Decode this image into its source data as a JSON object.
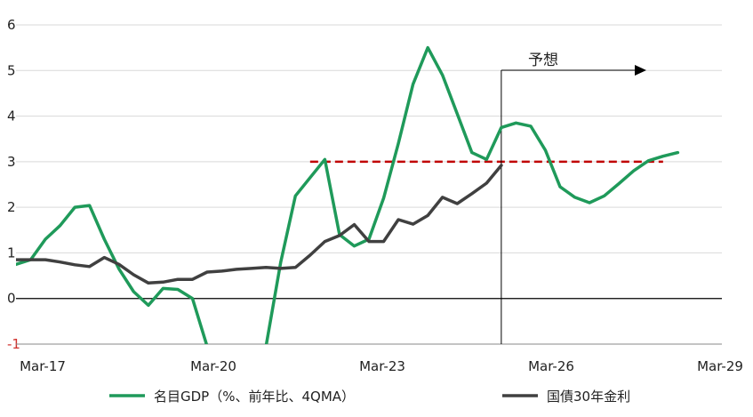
{
  "chart_data": {
    "type": "line",
    "title": "",
    "xlabel": "",
    "ylabel": "",
    "ylim": [
      -1,
      6
    ],
    "y_ticks": [
      "6",
      "5",
      "4",
      "3",
      "2",
      "1",
      "0",
      "-1"
    ],
    "x_ticks": [
      "Mar-17",
      "Mar-20",
      "Mar-23",
      "Mar-26",
      "Mar-29"
    ],
    "grid": "horizontal",
    "legend_position": "bottom",
    "series": [
      {
        "name": "名目GDP（%、前年比、4QMA）",
        "color": "#1f9a5a",
        "points": [
          [
            "2017-03",
            0.75
          ],
          [
            "2017-06",
            0.85
          ],
          [
            "2017-09",
            1.3
          ],
          [
            "2017-12",
            1.6
          ],
          [
            "2018-03",
            2.0
          ],
          [
            "2018-06",
            2.04
          ],
          [
            "2018-09",
            1.3
          ],
          [
            "2018-12",
            0.65
          ],
          [
            "2019-03",
            0.15
          ],
          [
            "2019-06",
            -0.15
          ],
          [
            "2019-09",
            0.22
          ],
          [
            "2019-12",
            0.2
          ],
          [
            "2020-03",
            0.0
          ],
          [
            "2020-06",
            -1.05
          ],
          [
            "2020-09",
            -1.4
          ],
          [
            "2020-12",
            -1.4
          ],
          [
            "2021-03",
            -1.4
          ],
          [
            "2021-06",
            -1.05
          ],
          [
            "2021-09",
            0.8
          ],
          [
            "2021-12",
            2.25
          ],
          [
            "2022-03",
            2.65
          ],
          [
            "2022-06",
            3.05
          ],
          [
            "2022-09",
            1.4
          ],
          [
            "2022-12",
            1.15
          ],
          [
            "2023-03",
            1.3
          ],
          [
            "2023-06",
            2.2
          ],
          [
            "2023-09",
            3.4
          ],
          [
            "2023-12",
            4.7
          ],
          [
            "2024-03",
            5.5
          ],
          [
            "2024-06",
            4.9
          ],
          [
            "2024-09",
            4.05
          ],
          [
            "2024-12",
            3.2
          ],
          [
            "2025-03",
            3.05
          ],
          [
            "2025-06",
            3.75
          ],
          [
            "2025-09",
            3.85
          ],
          [
            "2025-12",
            3.78
          ],
          [
            "2026-03",
            3.25
          ],
          [
            "2026-06",
            2.45
          ],
          [
            "2026-09",
            2.22
          ],
          [
            "2026-12",
            2.1
          ],
          [
            "2027-03",
            2.25
          ],
          [
            "2027-06",
            2.52
          ],
          [
            "2027-09",
            2.8
          ],
          [
            "2027-12",
            3.02
          ],
          [
            "2028-03",
            3.12
          ],
          [
            "2028-06",
            3.2
          ]
        ]
      },
      {
        "name": "国債30年金利",
        "color": "#404040",
        "points": [
          [
            "2017-03",
            0.85
          ],
          [
            "2017-06",
            0.85
          ],
          [
            "2017-09",
            0.85
          ],
          [
            "2017-12",
            0.8
          ],
          [
            "2018-03",
            0.74
          ],
          [
            "2018-06",
            0.7
          ],
          [
            "2018-09",
            0.9
          ],
          [
            "2018-12",
            0.75
          ],
          [
            "2019-03",
            0.52
          ],
          [
            "2019-06",
            0.34
          ],
          [
            "2019-09",
            0.36
          ],
          [
            "2019-12",
            0.42
          ],
          [
            "2020-03",
            0.42
          ],
          [
            "2020-06",
            0.58
          ],
          [
            "2020-09",
            0.6
          ],
          [
            "2020-12",
            0.64
          ],
          [
            "2021-03",
            0.66
          ],
          [
            "2021-06",
            0.68
          ],
          [
            "2021-09",
            0.66
          ],
          [
            "2021-12",
            0.68
          ],
          [
            "2022-03",
            0.95
          ],
          [
            "2022-06",
            1.25
          ],
          [
            "2022-09",
            1.38
          ],
          [
            "2022-12",
            1.62
          ],
          [
            "2023-03",
            1.25
          ],
          [
            "2023-06",
            1.25
          ],
          [
            "2023-09",
            1.73
          ],
          [
            "2023-12",
            1.63
          ],
          [
            "2024-03",
            1.82
          ],
          [
            "2024-06",
            2.22
          ],
          [
            "2024-09",
            2.08
          ],
          [
            "2024-12",
            2.3
          ],
          [
            "2025-03",
            2.53
          ],
          [
            "2025-06",
            2.92
          ]
        ]
      }
    ],
    "reference_line": {
      "y": 3.0,
      "from": "2022-03",
      "to": "2028-03",
      "color": "#c00000"
    },
    "forecast_marker": {
      "at": "2025-06",
      "label": "予想"
    }
  }
}
